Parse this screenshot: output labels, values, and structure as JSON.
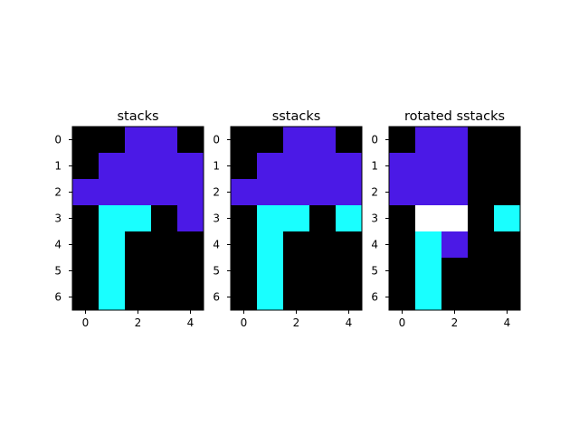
{
  "palette": {
    "0": "#000000",
    "1": "#ffffff",
    "2": "#4b19e6",
    "3": "#19ffff"
  },
  "chart_data": [
    {
      "type": "heatmap",
      "title": "stacks",
      "xticks": [
        0,
        2,
        4
      ],
      "yticks": [
        0,
        1,
        2,
        3,
        4,
        5,
        6
      ],
      "rows": 7,
      "cols": 5,
      "grid": [
        [
          0,
          0,
          2,
          2,
          0
        ],
        [
          0,
          2,
          2,
          2,
          2
        ],
        [
          2,
          2,
          2,
          2,
          2
        ],
        [
          0,
          3,
          3,
          0,
          2
        ],
        [
          0,
          3,
          0,
          0,
          0
        ],
        [
          0,
          3,
          0,
          0,
          0
        ],
        [
          0,
          3,
          0,
          0,
          0
        ]
      ]
    },
    {
      "type": "heatmap",
      "title": "sstacks",
      "xticks": [
        0,
        2,
        4
      ],
      "yticks": [
        0,
        1,
        2,
        3,
        4,
        5,
        6
      ],
      "rows": 7,
      "cols": 5,
      "grid": [
        [
          0,
          0,
          2,
          2,
          0
        ],
        [
          0,
          2,
          2,
          2,
          2
        ],
        [
          2,
          2,
          2,
          2,
          2
        ],
        [
          0,
          3,
          3,
          0,
          3
        ],
        [
          0,
          3,
          0,
          0,
          0
        ],
        [
          0,
          3,
          0,
          0,
          0
        ],
        [
          0,
          3,
          0,
          0,
          0
        ]
      ]
    },
    {
      "type": "heatmap",
      "title": "rotated sstacks",
      "xticks": [
        0,
        2,
        4
      ],
      "yticks": [
        0,
        1,
        2,
        3,
        4,
        5,
        6
      ],
      "rows": 7,
      "cols": 5,
      "grid": [
        [
          0,
          2,
          2,
          0,
          0
        ],
        [
          2,
          2,
          2,
          0,
          0
        ],
        [
          2,
          2,
          2,
          0,
          0
        ],
        [
          0,
          1,
          1,
          0,
          3
        ],
        [
          0,
          3,
          2,
          0,
          0
        ],
        [
          0,
          3,
          0,
          0,
          0
        ],
        [
          0,
          3,
          0,
          0,
          0
        ]
      ]
    }
  ]
}
